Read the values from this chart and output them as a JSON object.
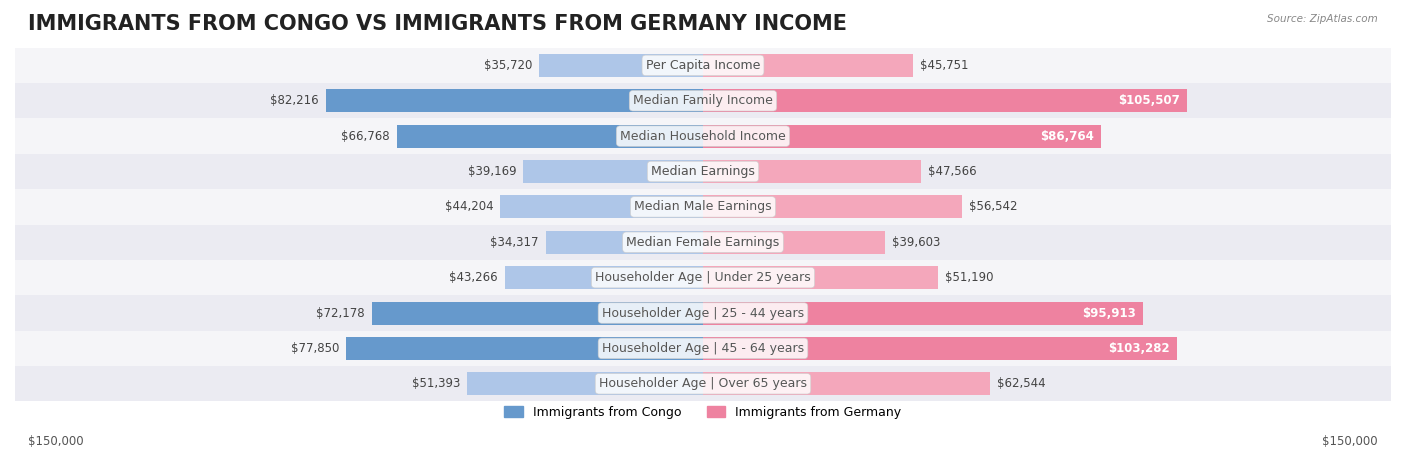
{
  "title": "IMMIGRANTS FROM CONGO VS IMMIGRANTS FROM GERMANY INCOME",
  "source": "Source: ZipAtlas.com",
  "categories": [
    "Per Capita Income",
    "Median Family Income",
    "Median Household Income",
    "Median Earnings",
    "Median Male Earnings",
    "Median Female Earnings",
    "Householder Age | Under 25 years",
    "Householder Age | 25 - 44 years",
    "Householder Age | 45 - 64 years",
    "Householder Age | Over 65 years"
  ],
  "congo_values": [
    35720,
    82216,
    66768,
    39169,
    44204,
    34317,
    43266,
    72178,
    77850,
    51393
  ],
  "germany_values": [
    45751,
    105507,
    86764,
    47566,
    56542,
    39603,
    51190,
    95913,
    103282,
    62544
  ],
  "congo_color_light": "#aec6e8",
  "congo_color_dark": "#6699cc",
  "germany_color_light": "#f4a7bb",
  "germany_color_dark": "#ee82a0",
  "bar_bg_color": "#f0f0f5",
  "row_bg_colors": [
    "#f5f5f8",
    "#ebebf2"
  ],
  "max_value": 150000,
  "congo_label": "Immigrants from Congo",
  "germany_label": "Immigrants from Germany",
  "xlabel_left": "$150,000",
  "xlabel_right": "$150,000",
  "title_fontsize": 15,
  "label_fontsize": 9,
  "value_fontsize": 8.5
}
